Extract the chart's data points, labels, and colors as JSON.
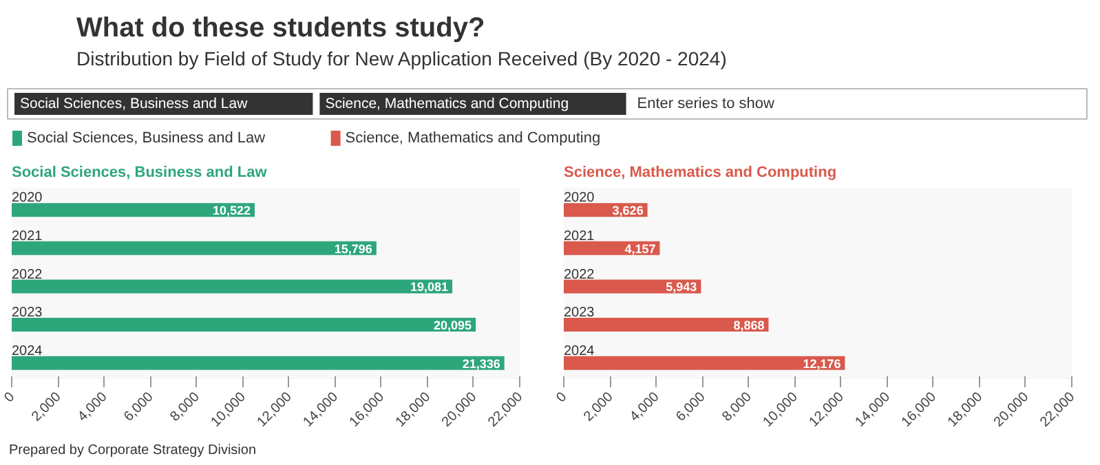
{
  "chart_data": [
    {
      "type": "bar",
      "orientation": "horizontal",
      "title": "What do these students study?",
      "subtitle": "Distribution by Field of Study for New Application Received (By 2020 - 2024)",
      "legend": "top",
      "annotations": [
        "Social Sciences, Business and Law",
        "Science, Mathematics and Computing",
        "Enter series to show",
        "Prepared by Corporate Strategy Division"
      ],
      "categories": [
        "2020",
        "2021",
        "2022",
        "2023",
        "2024"
      ],
      "series": [
        {
          "name": "Social Sciences, Business and Law",
          "color": "#2ea67b",
          "values": [
            10522,
            15796,
            19081,
            20095,
            21336
          ],
          "value_labels": [
            "10,522",
            "15,796",
            "19,081",
            "20,095",
            "21,336"
          ]
        }
      ],
      "xlim": [
        0,
        22000
      ],
      "xticks": [
        0,
        {
          "value": 2000,
          "label": "2,000"
        },
        {
          "value": 4000,
          "label": "4,000"
        },
        {
          "value": 6000,
          "label": "6,000"
        },
        {
          "value": 8000,
          "label": "8,000"
        },
        {
          "value": 10000,
          "label": "10,000"
        },
        {
          "value": 12000,
          "label": "12,000"
        },
        {
          "value": 14000,
          "label": "14,000"
        },
        {
          "value": 16000,
          "label": "16,000"
        },
        {
          "value": 18000,
          "label": "18,000"
        },
        {
          "value": 20000,
          "label": "20,000"
        },
        {
          "value": 22000,
          "label": "22,000"
        }
      ]
    },
    {
      "type": "bar",
      "orientation": "horizontal",
      "categories": [
        "2020",
        "2021",
        "2022",
        "2023",
        "2024"
      ],
      "series": [
        {
          "name": "Science, Mathematics and Computing",
          "color": "#d9594c",
          "values": [
            3626,
            4157,
            5943,
            8868,
            12176
          ],
          "value_labels": [
            "3,626",
            "4,157",
            "5,943",
            "8,868",
            "12,176"
          ]
        }
      ],
      "xlim": [
        0,
        22000
      ],
      "xticks": [
        0,
        {
          "value": 2000,
          "label": "2,000"
        },
        {
          "value": 4000,
          "label": "4,000"
        },
        {
          "value": 6000,
          "label": "6,000"
        },
        {
          "value": 8000,
          "label": "8,000"
        },
        {
          "value": 10000,
          "label": "10,000"
        },
        {
          "value": 12000,
          "label": "12,000"
        },
        {
          "value": 14000,
          "label": "14,000"
        },
        {
          "value": 16000,
          "label": "16,000"
        },
        {
          "value": 18000,
          "label": "18,000"
        },
        {
          "value": 20000,
          "label": "20,000"
        },
        {
          "value": 22000,
          "label": "22,000"
        }
      ]
    }
  ]
}
